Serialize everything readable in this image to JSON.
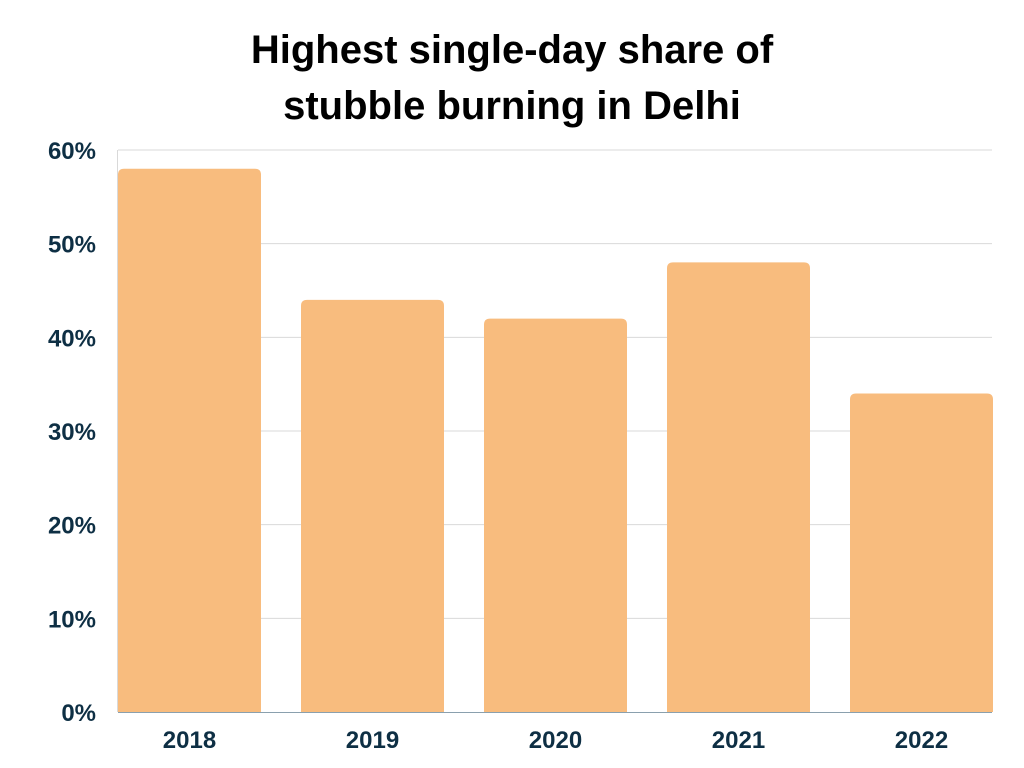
{
  "chart_data": {
    "type": "bar",
    "title_lines": [
      "Highest single-day share of",
      "stubble burning in Delhi"
    ],
    "categories": [
      "2018",
      "2019",
      "2020",
      "2021",
      "2022"
    ],
    "values": [
      58,
      44,
      42,
      48,
      34
    ],
    "ylim": [
      0,
      60
    ],
    "yticks": [
      0,
      10,
      20,
      30,
      40,
      50,
      60
    ],
    "ytick_labels": [
      "0%",
      "10%",
      "20%",
      "30%",
      "40%",
      "50%",
      "60%"
    ],
    "xlabel": "",
    "ylabel": "",
    "grid": true,
    "legend": "none",
    "colors": {
      "bar": "#F8BC7E",
      "tick_text": "#0E2F44",
      "grid": "#D9D9D9",
      "axis": "#8AA0AE"
    }
  }
}
